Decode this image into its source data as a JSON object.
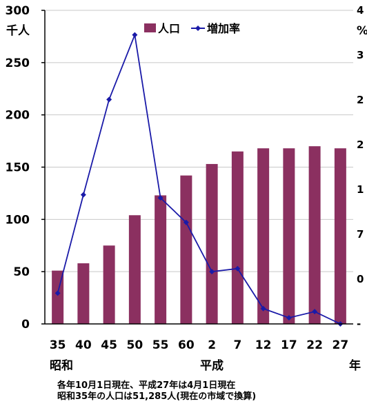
{
  "chart_data": {
    "type": "bar",
    "categories": [
      "35",
      "40",
      "45",
      "50",
      "55",
      "60",
      "2",
      "7",
      "12",
      "17",
      "22",
      "27"
    ],
    "series": [
      {
        "name": "人口",
        "type": "bar",
        "axis": "left",
        "color": "#8b3060",
        "values": [
          51,
          58,
          75,
          104,
          123,
          142,
          153,
          165,
          168,
          168,
          170,
          168
        ]
      },
      {
        "name": "増加率",
        "type": "line",
        "axis": "right",
        "color": "#1a1aa8",
        "values": [
          4,
          36,
          67,
          88,
          35,
          27,
          11,
          12,
          -1,
          -4,
          -2,
          -6
        ]
      }
    ],
    "left_axis": {
      "unit_label": "千人",
      "ylim": [
        0,
        300
      ],
      "ticks": [
        "0",
        "50",
        "100",
        "150",
        "200",
        "250",
        "300"
      ]
    },
    "right_axis": {
      "unit_label": "%",
      "ylim": [
        -6,
        96
      ],
      "ticks": [
        "-",
        "0",
        "7",
        "1",
        "2",
        "2",
        "3",
        "4"
      ]
    },
    "x_era_labels": {
      "showa": "昭和",
      "heisei": "平成",
      "suffix": "年"
    },
    "grid": true,
    "legend_position": "top-center"
  },
  "notes": [
    "各年10月1日現在、平成27年は4月1日現在",
    "昭和35年の人口は51,285人(現在の市域で換算)"
  ]
}
